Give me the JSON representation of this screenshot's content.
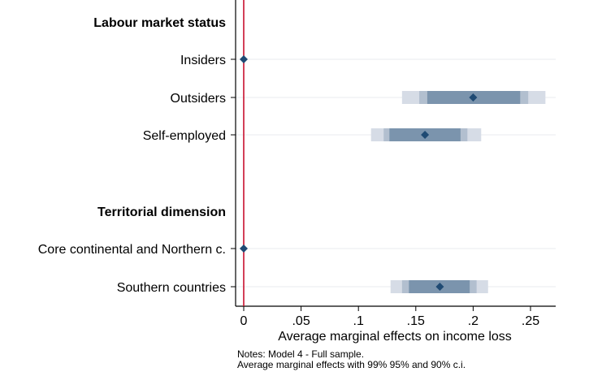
{
  "chart_data": {
    "type": "coefficient-plot",
    "xlabel": "Average marginal effects on income loss",
    "xlim": [
      0,
      0.27
    ],
    "x_ticks": [
      {
        "value": 0,
        "label": "0"
      },
      {
        "value": 0.05,
        "label": ".05"
      },
      {
        "value": 0.1,
        "label": ".1"
      },
      {
        "value": 0.15,
        "label": ".15"
      },
      {
        "value": 0.2,
        "label": ".2"
      },
      {
        "value": 0.25,
        "label": ".25"
      }
    ],
    "reference_line": {
      "x": 0,
      "color": "#c8102e"
    },
    "grid": true,
    "rows": [
      {
        "kind": "header",
        "label": "Labour market status"
      },
      {
        "kind": "estimate",
        "label": "Insiders",
        "estimate": 0,
        "ci99": [
          0,
          0
        ],
        "ci95": [
          0,
          0
        ],
        "ci90": [
          0,
          0
        ]
      },
      {
        "kind": "estimate",
        "label": "Outsiders",
        "estimate": 0.2,
        "ci99": [
          0.138,
          0.263
        ],
        "ci95": [
          0.153,
          0.248
        ],
        "ci90": [
          0.16,
          0.241
        ]
      },
      {
        "kind": "estimate",
        "label": "Self-employed",
        "estimate": 0.158,
        "ci99": [
          0.111,
          0.207
        ],
        "ci95": [
          0.122,
          0.195
        ],
        "ci90": [
          0.127,
          0.189
        ]
      },
      {
        "kind": "spacer",
        "label": ""
      },
      {
        "kind": "header",
        "label": "Territorial dimension"
      },
      {
        "kind": "estimate",
        "label": "Core continental and Northern c.",
        "estimate": 0,
        "ci99": [
          0,
          0
        ],
        "ci95": [
          0,
          0
        ],
        "ci90": [
          0,
          0
        ]
      },
      {
        "kind": "estimate",
        "label": "Southern countries",
        "estimate": 0.171,
        "ci99": [
          0.128,
          0.213
        ],
        "ci95": [
          0.138,
          0.203
        ],
        "ci90": [
          0.144,
          0.197
        ]
      }
    ],
    "colors": {
      "ci99": "#d6dce6",
      "ci95": "#b2bfcf",
      "ci90": "#7b94ad",
      "marker": "#1f4a73",
      "grid": "#e8ebef",
      "axis": "#000000"
    }
  },
  "notes": {
    "line1": "Notes: Model 4 - Full sample.",
    "line2": "Average marginal effects with 99% 95% and 90% c.i."
  }
}
